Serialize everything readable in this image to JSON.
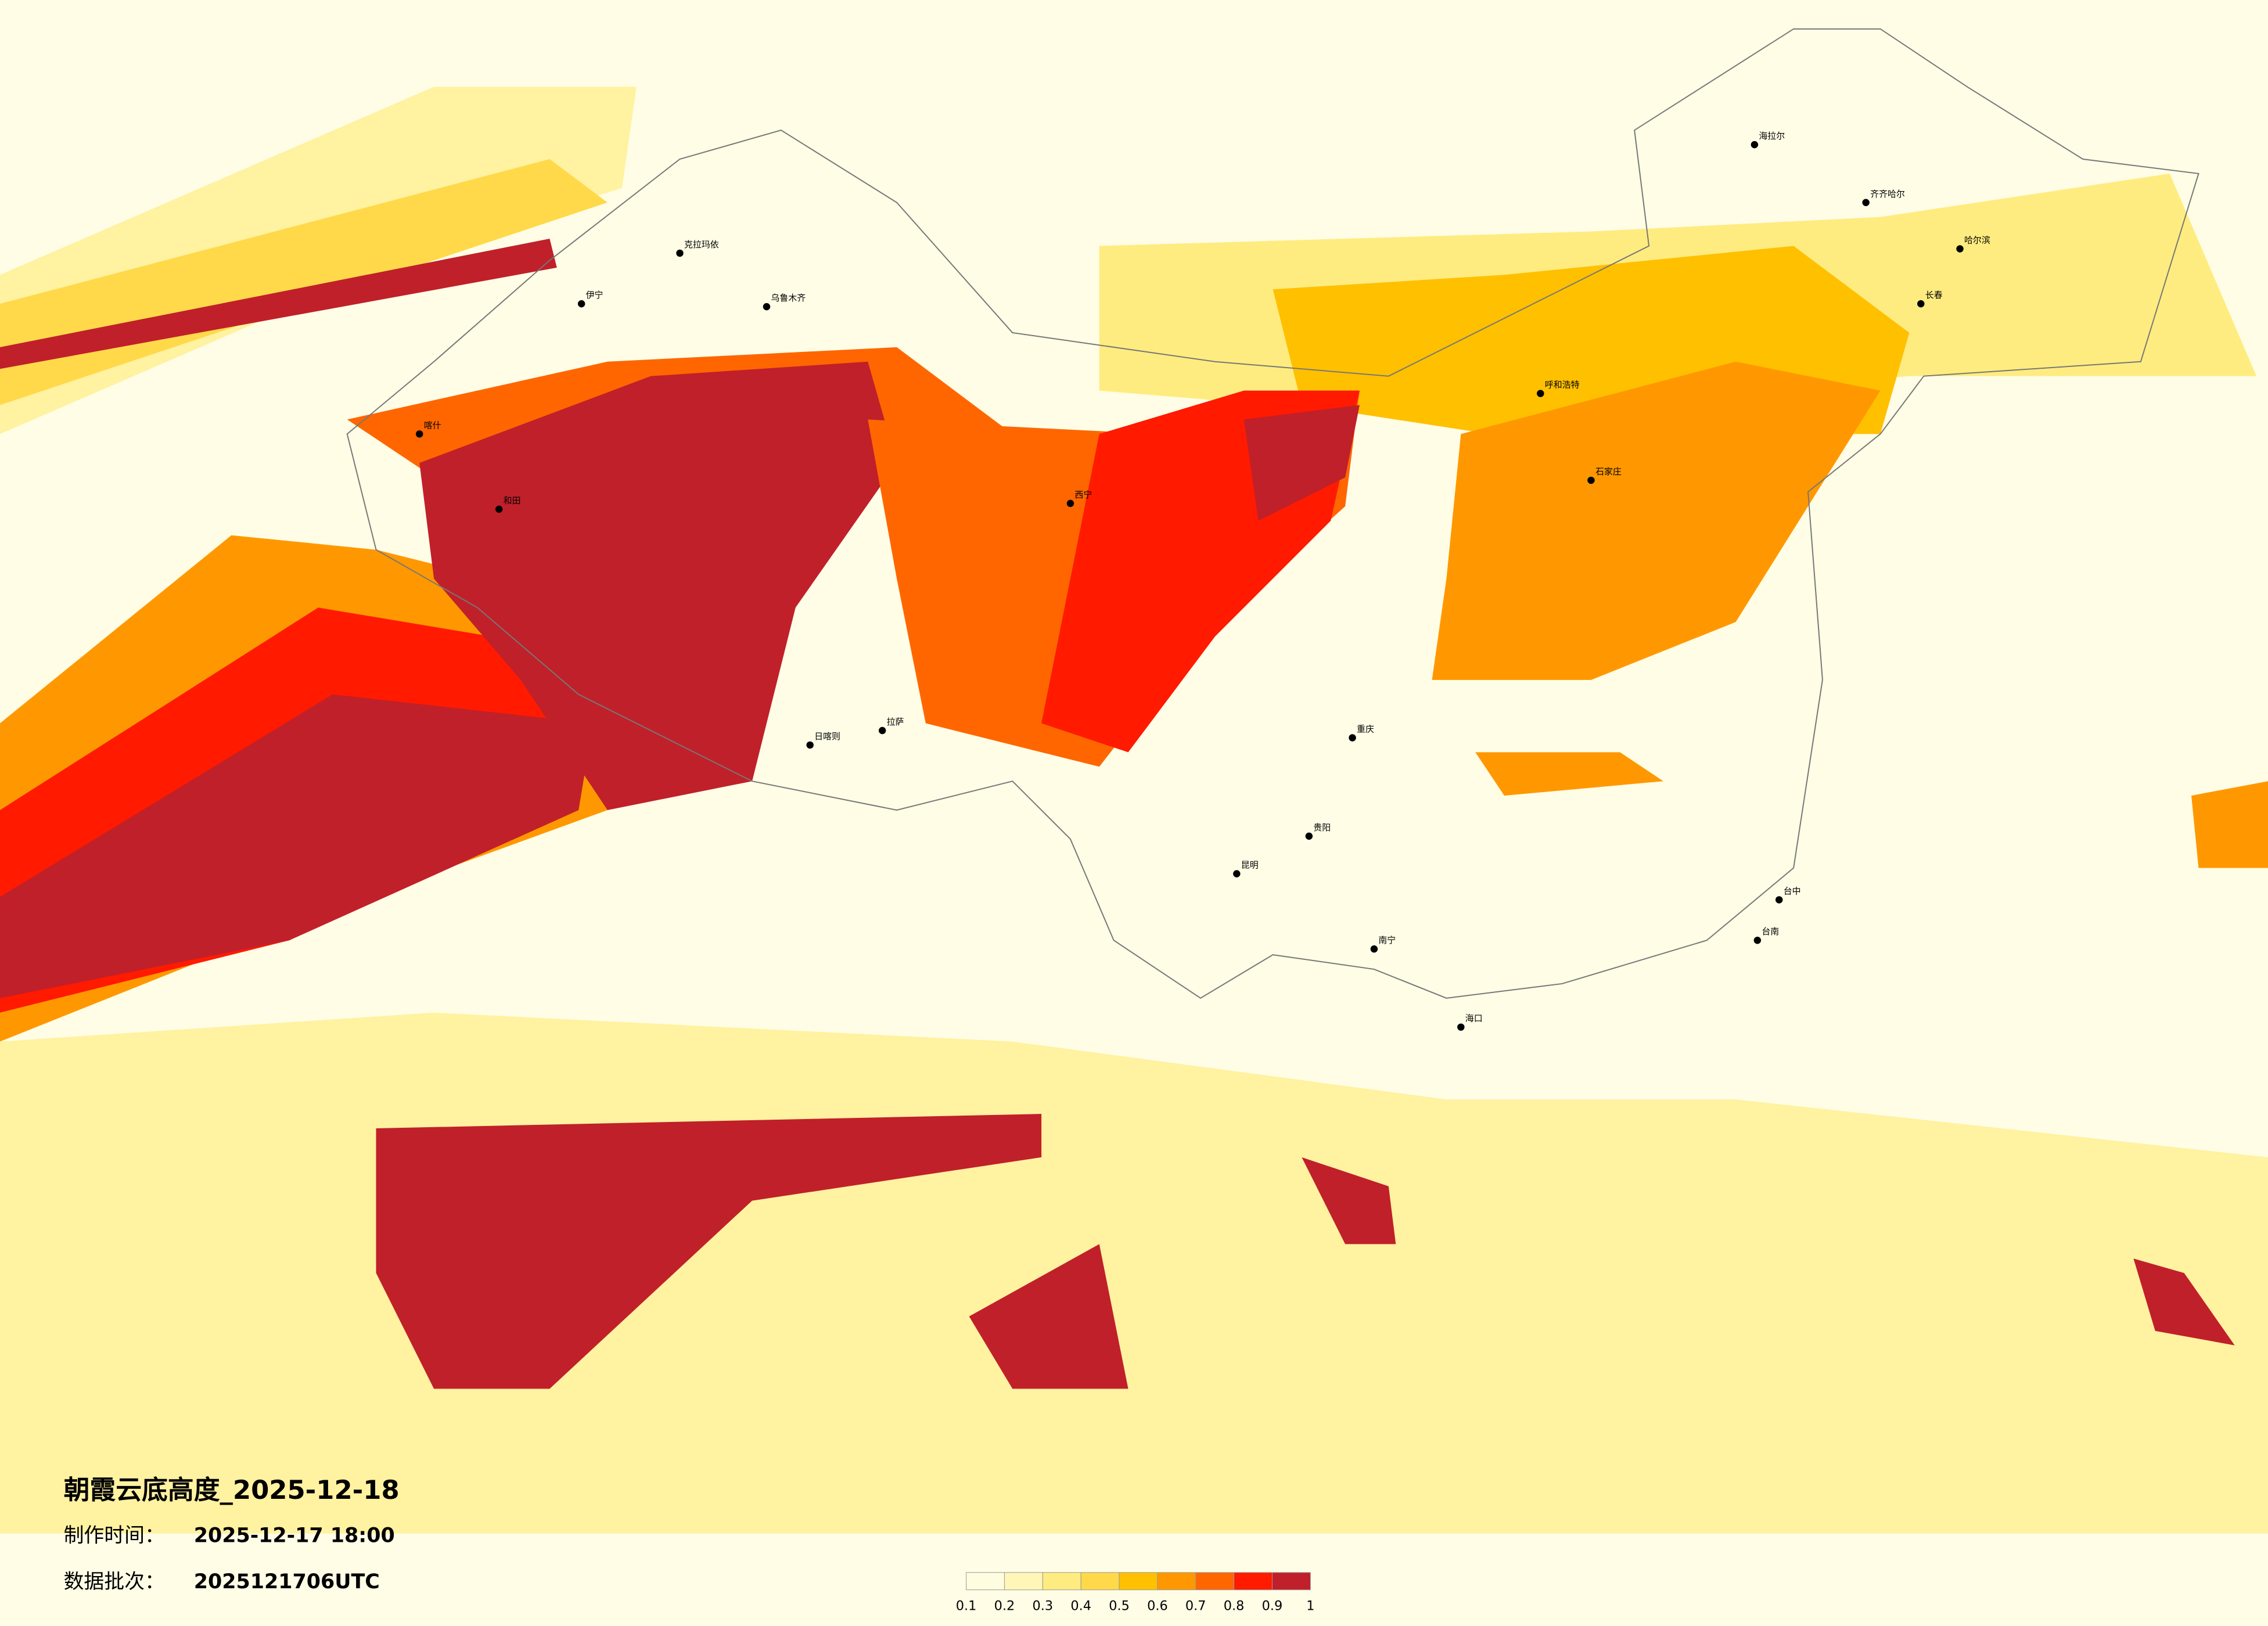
{
  "header": {
    "title": "朝霞云底高度_2025-12-18"
  },
  "info": [
    {
      "label": "制作时间：",
      "value": "2025-12-17 18:00"
    },
    {
      "label": "数据批次：",
      "value": "2025121706UTC"
    }
  ],
  "legend": {
    "ticks": [
      0.1,
      0.2,
      0.3,
      0.4,
      0.5,
      0.6,
      0.7,
      0.8,
      0.9,
      1
    ],
    "colors": [
      "#fffde0",
      "#fff6b8",
      "#ffec80",
      "#ffd94a",
      "#ffc000",
      "#ff9800",
      "#ff6600",
      "#ff1a00",
      "#c0202a"
    ]
  },
  "cities": [
    "海拉尔",
    "齐齐哈尔",
    "哈尔滨",
    "长春",
    "呼和浩特",
    "石家庄",
    "西宁",
    "拉萨",
    "日喀则",
    "乌鲁木齐",
    "克拉玛依",
    "伊宁",
    "喀什",
    "和田",
    "重庆",
    "贵阳",
    "昆明",
    "南宁",
    "海口",
    "台中",
    "台南"
  ]
}
